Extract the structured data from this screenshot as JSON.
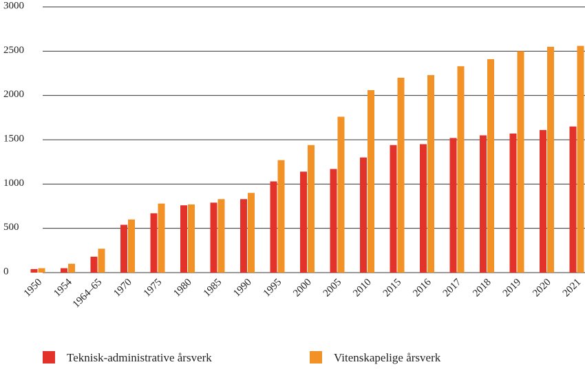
{
  "chart_data": {
    "type": "bar",
    "categories": [
      "1950",
      "1954",
      "1964–65",
      "1970",
      "1975",
      "1980",
      "1985",
      "1990",
      "1995",
      "2000",
      "2005",
      "2010",
      "2015",
      "2016",
      "2017",
      "2018",
      "2019",
      "2020",
      "2021"
    ],
    "series": [
      {
        "name": "Teknisk-administrative årsverk",
        "color": "#e2322a",
        "values": [
          40,
          50,
          180,
          540,
          670,
          760,
          790,
          830,
          1030,
          1140,
          1170,
          1300,
          1440,
          1450,
          1520,
          1550,
          1570,
          1610,
          1650
        ]
      },
      {
        "name": "Vitenskapelige årsverk",
        "color": "#f29226",
        "values": [
          50,
          100,
          270,
          600,
          780,
          770,
          830,
          900,
          1270,
          1440,
          1760,
          2060,
          2200,
          2230,
          2330,
          2410,
          2500,
          2550,
          2560
        ]
      }
    ],
    "ylim": [
      0,
      3000
    ],
    "yticks": [
      0,
      500,
      1000,
      1500,
      2000,
      2500,
      3000
    ],
    "grid": true,
    "legend": "bottom"
  }
}
